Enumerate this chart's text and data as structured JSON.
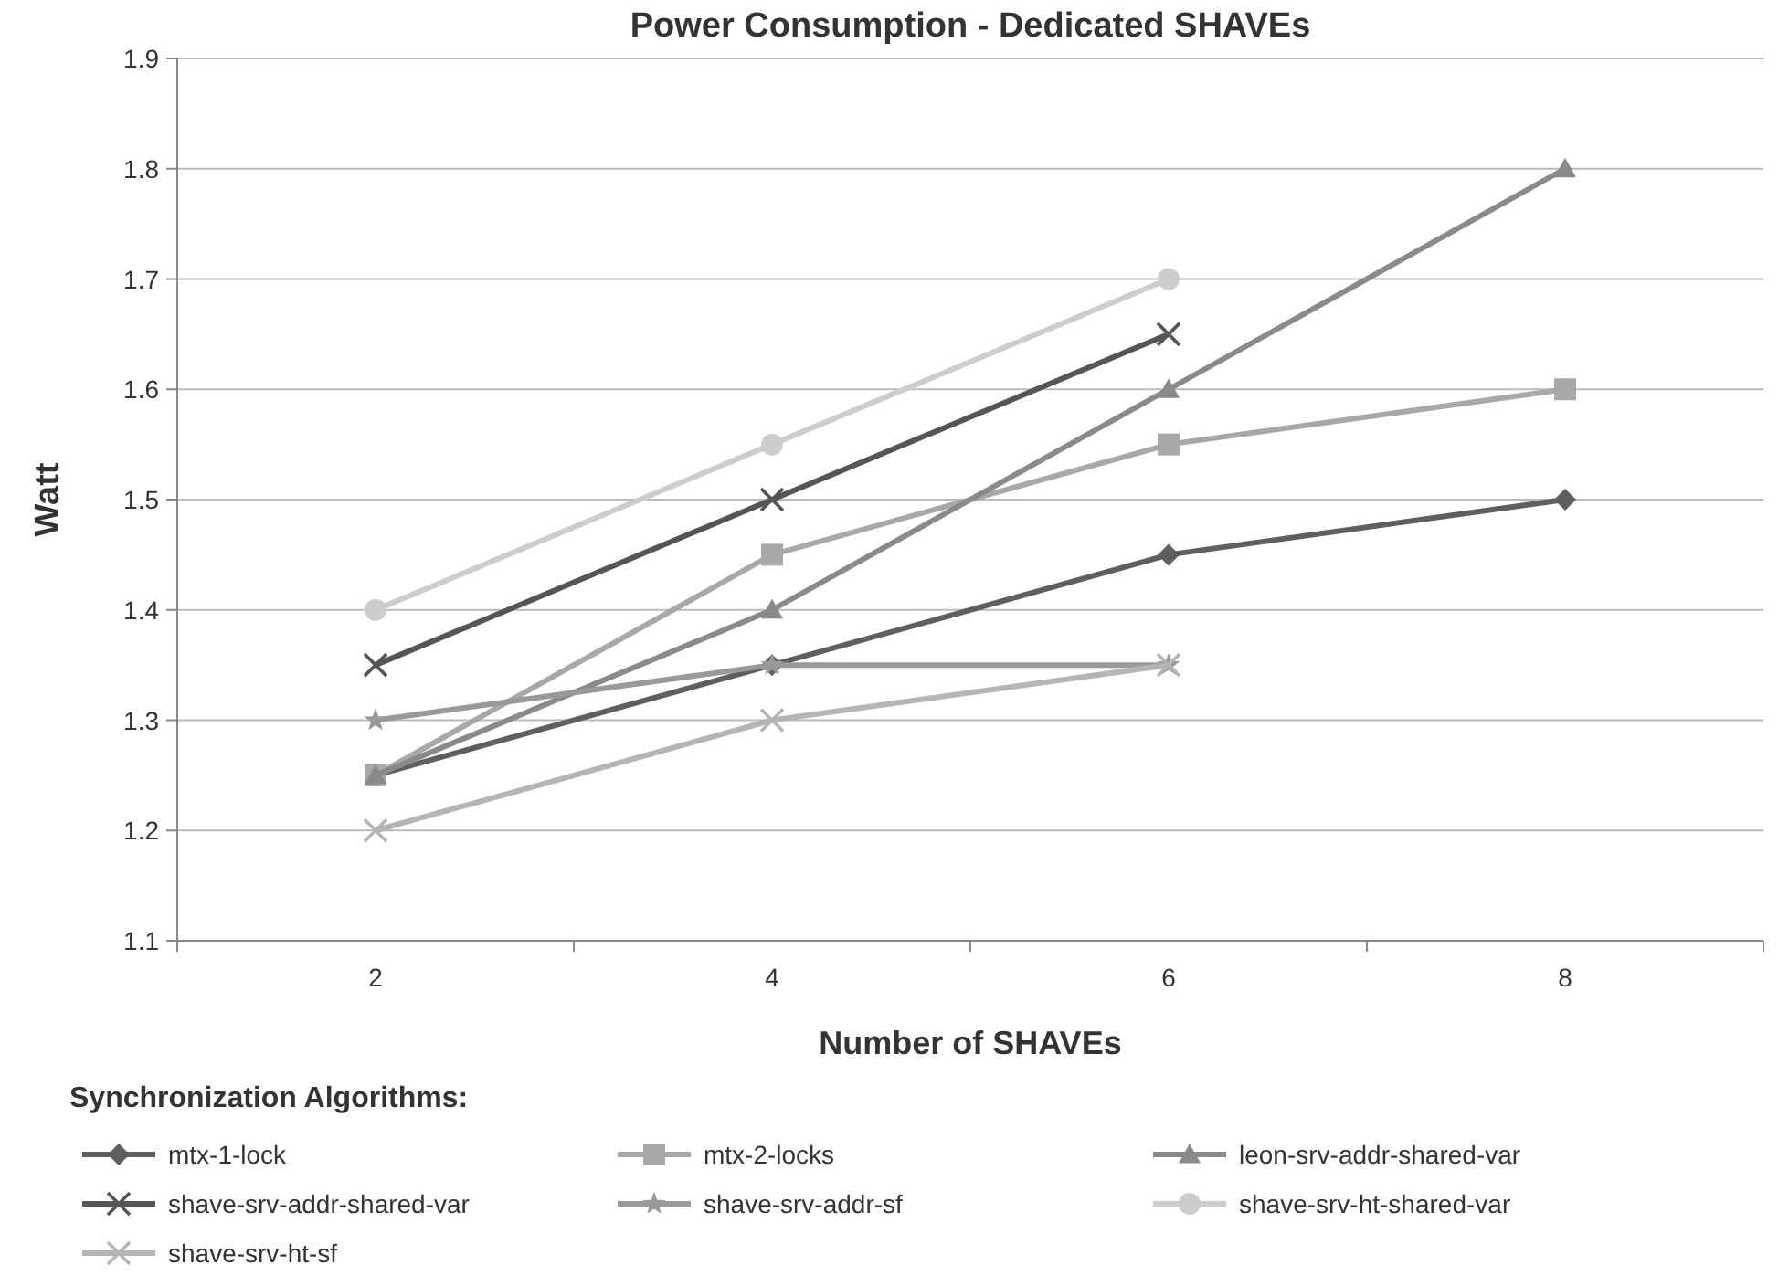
{
  "chart_data": {
    "type": "line",
    "title": "Power Consumption - Dedicated SHAVEs",
    "xlabel": "Number of SHAVEs",
    "ylabel": "Watt",
    "legend_title": "Synchronization Algorithms:",
    "categories": [
      "2",
      "4",
      "6",
      "8"
    ],
    "ylim": [
      1.1,
      1.9
    ],
    "yticks": [
      1.1,
      1.2,
      1.3,
      1.4,
      1.5,
      1.6,
      1.7,
      1.8,
      1.9
    ],
    "grid": "y",
    "legend": "bottom",
    "series": [
      {
        "name": "mtx-1-lock",
        "color": "#5f5f5f",
        "marker": "diamond",
        "values": [
          1.25,
          1.35,
          1.45,
          1.5
        ]
      },
      {
        "name": "mtx-2-locks",
        "color": "#a8a8a8",
        "marker": "square",
        "values": [
          1.25,
          1.45,
          1.55,
          1.6
        ]
      },
      {
        "name": "leon-srv-addr-shared-var",
        "color": "#8a8a8a",
        "marker": "triangle",
        "values": [
          1.25,
          1.4,
          1.6,
          1.8
        ]
      },
      {
        "name": "shave-srv-addr-shared-var",
        "color": "#555555",
        "marker": "cross",
        "values": [
          1.35,
          1.5,
          1.65,
          null
        ]
      },
      {
        "name": "shave-srv-addr-sf",
        "color": "#999999",
        "marker": "star",
        "values": [
          1.3,
          1.35,
          1.35,
          null
        ]
      },
      {
        "name": "shave-srv-ht-shared-var",
        "color": "#cdcdcd",
        "marker": "circle",
        "values": [
          1.4,
          1.55,
          1.7,
          null
        ]
      },
      {
        "name": "shave-srv-ht-sf",
        "color": "#b5b5b5",
        "marker": "cross",
        "values": [
          1.2,
          1.3,
          1.35,
          null
        ]
      }
    ]
  }
}
